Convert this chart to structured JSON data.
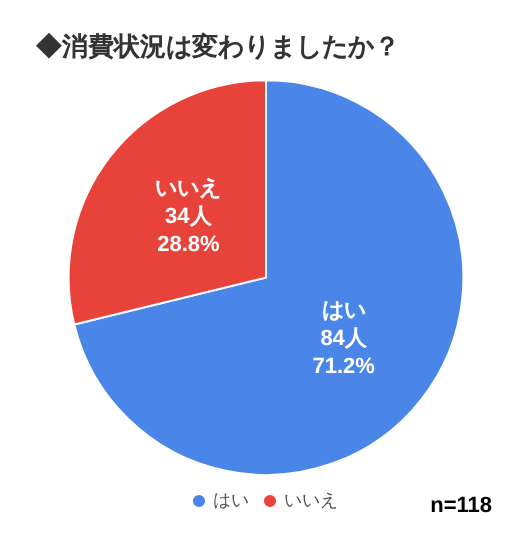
{
  "chart_data": {
    "type": "pie",
    "title": "◆消費状況は変わりましたか？",
    "categories": [
      "はい",
      "いいえ"
    ],
    "values": [
      84,
      34
    ],
    "colors": [
      "#4a86e8",
      "#e8433a"
    ],
    "value_labels": [
      "84人\n71.2%",
      "34人\n28.8%"
    ],
    "legend": "bottom",
    "annotations": [
      "n=118"
    ]
  }
}
